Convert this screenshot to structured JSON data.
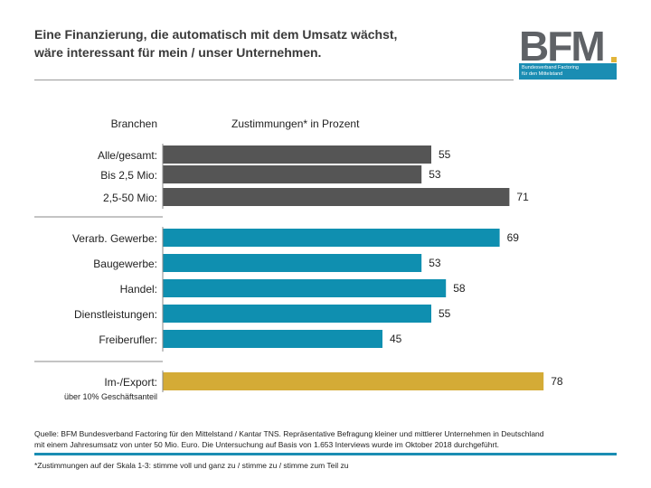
{
  "header": {
    "title_line1": "Eine Finanzierung, die automatisch mit dem Umsatz wächst,",
    "title_line2": "wäre interessant für mein / unser Unternehmen."
  },
  "logo": {
    "text": "BFM",
    "sub_line1": "Bundesverband Factoring",
    "sub_line2": "für den Mittelstand"
  },
  "colors": {
    "gray": "#555555",
    "teal": "#0f8fb0",
    "gold": "#d4ab36",
    "accent_blue": "#1a8db3"
  },
  "chart_data": {
    "type": "bar",
    "orientation": "horizontal",
    "category_header": "Branchen",
    "value_header": "Zustimmungen* in Prozent",
    "groups": [
      {
        "color": "gray",
        "categories": [
          "Alle/gesamt:",
          "Bis 2,5 Mio:",
          "2,5-50 Mio:"
        ],
        "values": [
          55,
          53,
          71
        ]
      },
      {
        "color": "teal",
        "categories": [
          "Verarb. Gewerbe:",
          "Baugewerbe:",
          "Handel:",
          "Dienstleistungen:",
          "Freiberufler:"
        ],
        "values": [
          69,
          53,
          58,
          55,
          45
        ]
      },
      {
        "color": "gold",
        "categories": [
          "Im-/Export:"
        ],
        "sublabel": "über 10% Geschäftsanteil",
        "values": [
          78
        ]
      }
    ]
  },
  "footer": {
    "source_line1": "Quelle: BFM Bundesverband Factoring für den Mittelstand / Kantar TNS. Repräsentative Befragung kleiner und mittlerer Unternehmen in Deutschland",
    "source_line2": "mit einem Jahresumsatz von unter 50 Mio. Euro. Die Untersuchung auf Basis von 1.653 Interviews wurde im Oktober 2018 durchgeführt.",
    "footnote": "*Zustimmungen auf der Skala 1-3: stimme voll und ganz zu / stimme zu / stimme zum Teil zu"
  }
}
